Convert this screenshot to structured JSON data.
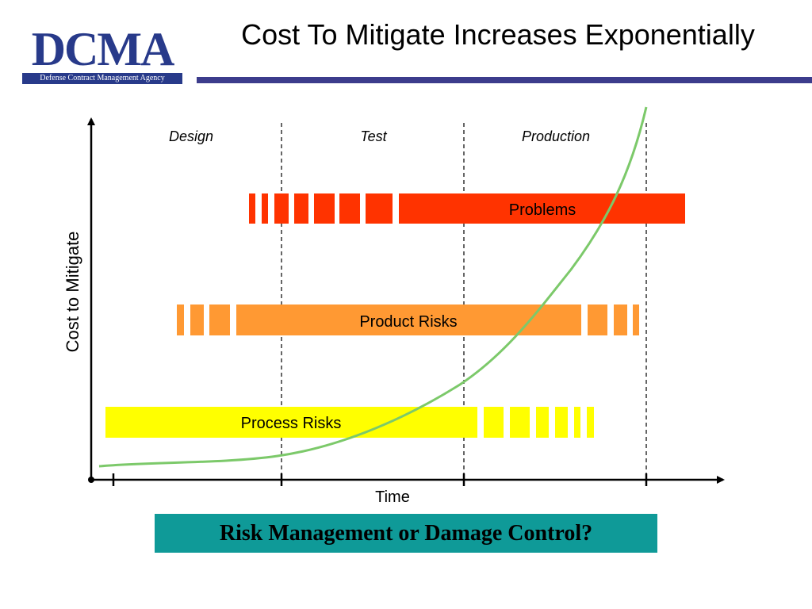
{
  "logo": {
    "wordmark": "DCMA",
    "tagline": "Defense Contract Management Agency"
  },
  "title": "Cost To Mitigate Increases Exponentially",
  "diagram": {
    "phases": [
      "Design",
      "Test",
      "Production"
    ],
    "bars": [
      {
        "label": "Problems",
        "color": "#ff3300"
      },
      {
        "label": "Product Risks",
        "color": "#ff9933"
      },
      {
        "label": "Process Risks",
        "color": "#ffff00"
      }
    ],
    "axes": {
      "x_label": "Time",
      "y_label": "Cost to Mitigate"
    },
    "curve_color": "#7cc96a"
  },
  "banner": "Risk Management or Damage Control?",
  "colors": {
    "brand_blue": "#283a8a",
    "rule_blue": "#3c3c8c",
    "banner_teal": "#0f9a98"
  }
}
